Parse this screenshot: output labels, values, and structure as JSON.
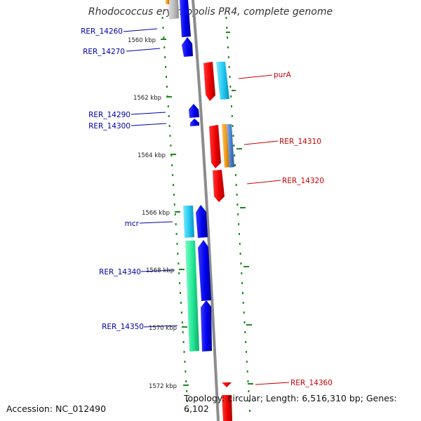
{
  "title": "Rhodococcus erythropolis PR4, complete genome",
  "footer": {
    "accession": "Accession: NC_012490",
    "summary": "Topology: circular; Length: 6,516,310 bp; Genes: 6,102"
  },
  "colors": {
    "tick": "#1a8a1a",
    "backbone": "#8c8c8c",
    "forward_label": "#cc0000",
    "reverse_label": "#0000aa"
  },
  "scale_ticks": [
    {
      "label": "1560 kbp"
    },
    {
      "label": "1562 kbp"
    },
    {
      "label": "1564 kbp"
    },
    {
      "label": "1566 kbp"
    },
    {
      "label": "1568 kbp"
    },
    {
      "label": "1570 kbp"
    },
    {
      "label": "1572 kbp"
    }
  ],
  "reverse_gene_labels": [
    {
      "text": "RER_14260"
    },
    {
      "text": "RER_14270"
    },
    {
      "text": "RER_14290"
    },
    {
      "text": "RER_14300"
    },
    {
      "text": "mcr"
    },
    {
      "text": "RER_14340"
    },
    {
      "text": "RER_14350"
    }
  ],
  "forward_gene_labels": [
    {
      "text": "purA"
    },
    {
      "text": "RER_14310"
    },
    {
      "text": "RER_14320"
    },
    {
      "text": "RER_14360"
    }
  ],
  "legend_feature_colors": {
    "cds": "#ff0000",
    "cds_reverse": "#0000ff",
    "light_blue": "#2bc8f0",
    "orange": "#f29a1a",
    "steel_blue": "#4a7fc8",
    "green": "#24e89a",
    "gray": "#bbbbbb"
  }
}
